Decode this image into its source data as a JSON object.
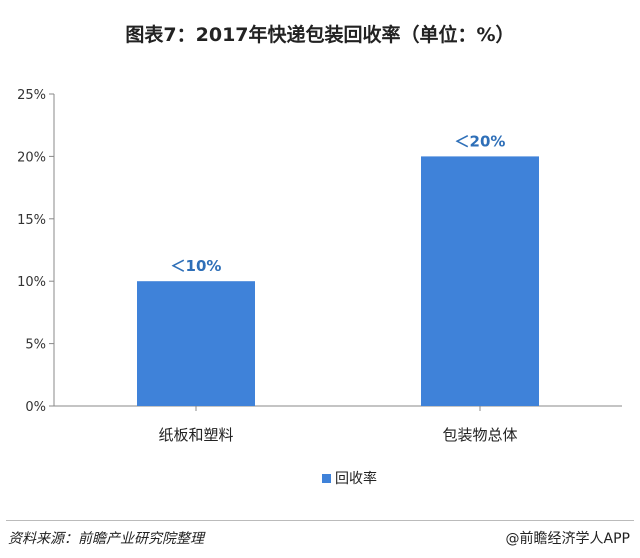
{
  "title": "图表7：2017年快递包装回收率（单位：%）",
  "chart_data": {
    "type": "bar",
    "categories": [
      "纸板和塑料",
      "包装物总体"
    ],
    "series": [
      {
        "name": "回收率",
        "values": [
          10,
          20
        ]
      }
    ],
    "data_labels": [
      "＜10%",
      "＜20%"
    ],
    "yticks": [
      "0%",
      "5%",
      "10%",
      "15%",
      "20%",
      "25%"
    ],
    "ylim": [
      0,
      25
    ],
    "legend_position": "bottom",
    "bar_color": "#3f82d9",
    "grid": false
  },
  "footer": {
    "source": "资料来源：前瞻产业研究院整理",
    "credit": "@前瞻经济学人APP"
  }
}
